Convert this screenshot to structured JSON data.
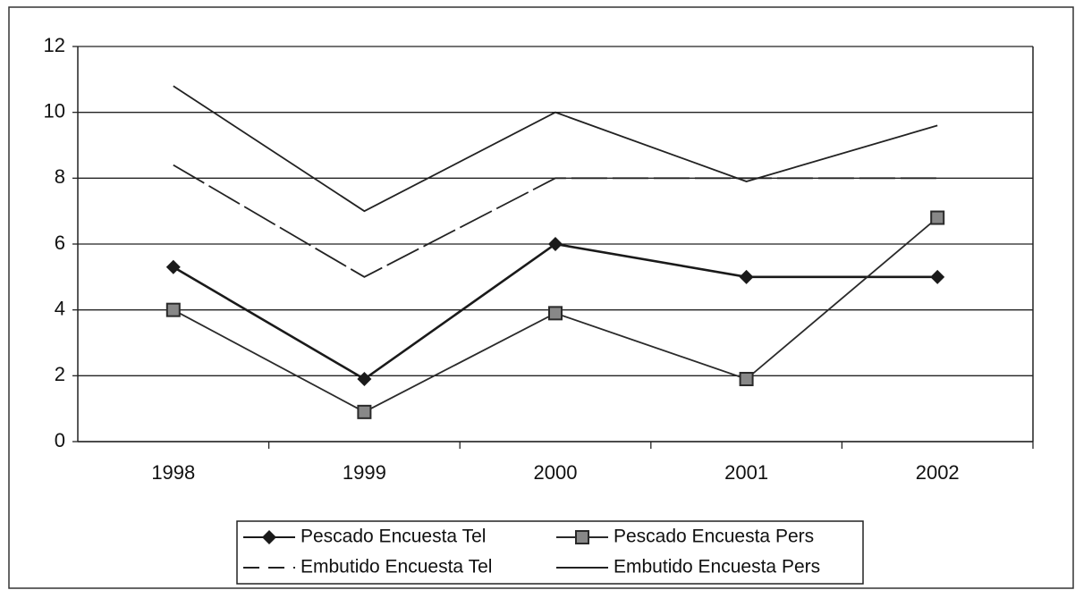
{
  "chart_data": {
    "type": "line",
    "categories": [
      "1998",
      "1999",
      "2000",
      "2001",
      "2002"
    ],
    "series": [
      {
        "name": "Pescado Encuesta Tel",
        "color": "#1a1a1a",
        "marker": "diamond",
        "linestyle": "solid",
        "values": [
          5.3,
          1.9,
          6,
          5,
          5
        ]
      },
      {
        "name": "Pescado Encuesta Pers",
        "color": "#2a2a2a",
        "marker": "square",
        "linestyle": "solid",
        "values": [
          4,
          0.9,
          3.9,
          1.9,
          6.8
        ]
      },
      {
        "name": "Embutido Encuesta Tel",
        "color": "#222222",
        "marker": "none",
        "linestyle": "dashed",
        "values": [
          8.4,
          5,
          8,
          8,
          8
        ]
      },
      {
        "name": "Embutido Encuesta Pers",
        "color": "#222222",
        "marker": "none",
        "linestyle": "solid",
        "values": [
          10.8,
          7,
          10,
          7.9,
          9.6
        ]
      }
    ],
    "ylim": [
      0,
      12
    ],
    "yticks": [
      0,
      2,
      4,
      6,
      8,
      10,
      12
    ],
    "grid": true,
    "legend": "bottom"
  }
}
